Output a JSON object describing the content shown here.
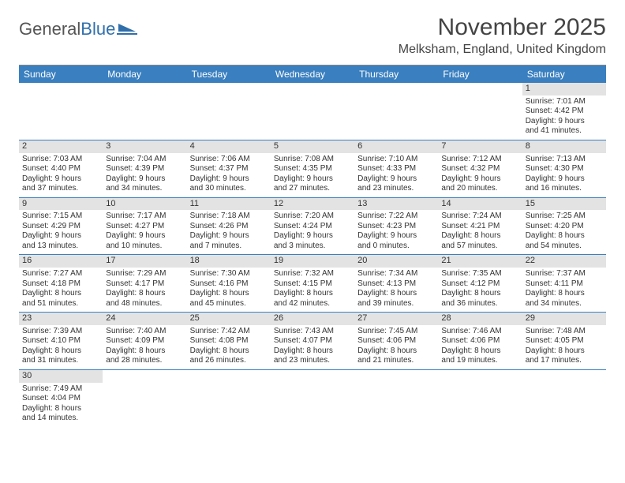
{
  "logo": {
    "text_general": "General",
    "text_blue": "Blue"
  },
  "title": "November 2025",
  "location": "Melksham, England, United Kingdom",
  "colors": {
    "header_bg": "#3a7fbf",
    "header_text": "#ffffff",
    "daynum_bg": "#e3e3e3",
    "row_divider": "#3a7fbf",
    "page_bg": "#ffffff",
    "text": "#333333",
    "logo_gray": "#555555",
    "logo_blue": "#2f6fab"
  },
  "weekdays": [
    "Sunday",
    "Monday",
    "Tuesday",
    "Wednesday",
    "Thursday",
    "Friday",
    "Saturday"
  ],
  "weeks": [
    [
      {
        "empty": true
      },
      {
        "empty": true
      },
      {
        "empty": true
      },
      {
        "empty": true
      },
      {
        "empty": true
      },
      {
        "empty": true
      },
      {
        "day": "1",
        "sunrise": "Sunrise: 7:01 AM",
        "sunset": "Sunset: 4:42 PM",
        "daylight1": "Daylight: 9 hours",
        "daylight2": "and 41 minutes."
      }
    ],
    [
      {
        "day": "2",
        "sunrise": "Sunrise: 7:03 AM",
        "sunset": "Sunset: 4:40 PM",
        "daylight1": "Daylight: 9 hours",
        "daylight2": "and 37 minutes."
      },
      {
        "day": "3",
        "sunrise": "Sunrise: 7:04 AM",
        "sunset": "Sunset: 4:39 PM",
        "daylight1": "Daylight: 9 hours",
        "daylight2": "and 34 minutes."
      },
      {
        "day": "4",
        "sunrise": "Sunrise: 7:06 AM",
        "sunset": "Sunset: 4:37 PM",
        "daylight1": "Daylight: 9 hours",
        "daylight2": "and 30 minutes."
      },
      {
        "day": "5",
        "sunrise": "Sunrise: 7:08 AM",
        "sunset": "Sunset: 4:35 PM",
        "daylight1": "Daylight: 9 hours",
        "daylight2": "and 27 minutes."
      },
      {
        "day": "6",
        "sunrise": "Sunrise: 7:10 AM",
        "sunset": "Sunset: 4:33 PM",
        "daylight1": "Daylight: 9 hours",
        "daylight2": "and 23 minutes."
      },
      {
        "day": "7",
        "sunrise": "Sunrise: 7:12 AM",
        "sunset": "Sunset: 4:32 PM",
        "daylight1": "Daylight: 9 hours",
        "daylight2": "and 20 minutes."
      },
      {
        "day": "8",
        "sunrise": "Sunrise: 7:13 AM",
        "sunset": "Sunset: 4:30 PM",
        "daylight1": "Daylight: 9 hours",
        "daylight2": "and 16 minutes."
      }
    ],
    [
      {
        "day": "9",
        "sunrise": "Sunrise: 7:15 AM",
        "sunset": "Sunset: 4:29 PM",
        "daylight1": "Daylight: 9 hours",
        "daylight2": "and 13 minutes."
      },
      {
        "day": "10",
        "sunrise": "Sunrise: 7:17 AM",
        "sunset": "Sunset: 4:27 PM",
        "daylight1": "Daylight: 9 hours",
        "daylight2": "and 10 minutes."
      },
      {
        "day": "11",
        "sunrise": "Sunrise: 7:18 AM",
        "sunset": "Sunset: 4:26 PM",
        "daylight1": "Daylight: 9 hours",
        "daylight2": "and 7 minutes."
      },
      {
        "day": "12",
        "sunrise": "Sunrise: 7:20 AM",
        "sunset": "Sunset: 4:24 PM",
        "daylight1": "Daylight: 9 hours",
        "daylight2": "and 3 minutes."
      },
      {
        "day": "13",
        "sunrise": "Sunrise: 7:22 AM",
        "sunset": "Sunset: 4:23 PM",
        "daylight1": "Daylight: 9 hours",
        "daylight2": "and 0 minutes."
      },
      {
        "day": "14",
        "sunrise": "Sunrise: 7:24 AM",
        "sunset": "Sunset: 4:21 PM",
        "daylight1": "Daylight: 8 hours",
        "daylight2": "and 57 minutes."
      },
      {
        "day": "15",
        "sunrise": "Sunrise: 7:25 AM",
        "sunset": "Sunset: 4:20 PM",
        "daylight1": "Daylight: 8 hours",
        "daylight2": "and 54 minutes."
      }
    ],
    [
      {
        "day": "16",
        "sunrise": "Sunrise: 7:27 AM",
        "sunset": "Sunset: 4:18 PM",
        "daylight1": "Daylight: 8 hours",
        "daylight2": "and 51 minutes."
      },
      {
        "day": "17",
        "sunrise": "Sunrise: 7:29 AM",
        "sunset": "Sunset: 4:17 PM",
        "daylight1": "Daylight: 8 hours",
        "daylight2": "and 48 minutes."
      },
      {
        "day": "18",
        "sunrise": "Sunrise: 7:30 AM",
        "sunset": "Sunset: 4:16 PM",
        "daylight1": "Daylight: 8 hours",
        "daylight2": "and 45 minutes."
      },
      {
        "day": "19",
        "sunrise": "Sunrise: 7:32 AM",
        "sunset": "Sunset: 4:15 PM",
        "daylight1": "Daylight: 8 hours",
        "daylight2": "and 42 minutes."
      },
      {
        "day": "20",
        "sunrise": "Sunrise: 7:34 AM",
        "sunset": "Sunset: 4:13 PM",
        "daylight1": "Daylight: 8 hours",
        "daylight2": "and 39 minutes."
      },
      {
        "day": "21",
        "sunrise": "Sunrise: 7:35 AM",
        "sunset": "Sunset: 4:12 PM",
        "daylight1": "Daylight: 8 hours",
        "daylight2": "and 36 minutes."
      },
      {
        "day": "22",
        "sunrise": "Sunrise: 7:37 AM",
        "sunset": "Sunset: 4:11 PM",
        "daylight1": "Daylight: 8 hours",
        "daylight2": "and 34 minutes."
      }
    ],
    [
      {
        "day": "23",
        "sunrise": "Sunrise: 7:39 AM",
        "sunset": "Sunset: 4:10 PM",
        "daylight1": "Daylight: 8 hours",
        "daylight2": "and 31 minutes."
      },
      {
        "day": "24",
        "sunrise": "Sunrise: 7:40 AM",
        "sunset": "Sunset: 4:09 PM",
        "daylight1": "Daylight: 8 hours",
        "daylight2": "and 28 minutes."
      },
      {
        "day": "25",
        "sunrise": "Sunrise: 7:42 AM",
        "sunset": "Sunset: 4:08 PM",
        "daylight1": "Daylight: 8 hours",
        "daylight2": "and 26 minutes."
      },
      {
        "day": "26",
        "sunrise": "Sunrise: 7:43 AM",
        "sunset": "Sunset: 4:07 PM",
        "daylight1": "Daylight: 8 hours",
        "daylight2": "and 23 minutes."
      },
      {
        "day": "27",
        "sunrise": "Sunrise: 7:45 AM",
        "sunset": "Sunset: 4:06 PM",
        "daylight1": "Daylight: 8 hours",
        "daylight2": "and 21 minutes."
      },
      {
        "day": "28",
        "sunrise": "Sunrise: 7:46 AM",
        "sunset": "Sunset: 4:06 PM",
        "daylight1": "Daylight: 8 hours",
        "daylight2": "and 19 minutes."
      },
      {
        "day": "29",
        "sunrise": "Sunrise: 7:48 AM",
        "sunset": "Sunset: 4:05 PM",
        "daylight1": "Daylight: 8 hours",
        "daylight2": "and 17 minutes."
      }
    ],
    [
      {
        "day": "30",
        "sunrise": "Sunrise: 7:49 AM",
        "sunset": "Sunset: 4:04 PM",
        "daylight1": "Daylight: 8 hours",
        "daylight2": "and 14 minutes."
      },
      {
        "empty": true
      },
      {
        "empty": true
      },
      {
        "empty": true
      },
      {
        "empty": true
      },
      {
        "empty": true
      },
      {
        "empty": true
      }
    ]
  ]
}
